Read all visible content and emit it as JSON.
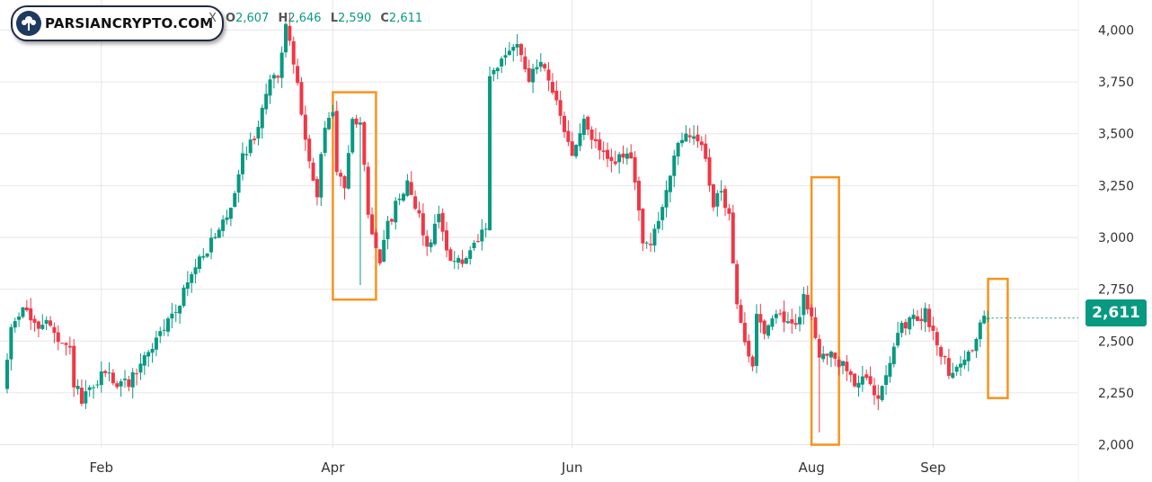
{
  "watermark": {
    "text": "PARSIANCRYPTO.COM"
  },
  "ohlc": {
    "symbol_tail": "X",
    "open_label": "O",
    "open": "2,607",
    "high_label": "H",
    "high": "2,646",
    "low_label": "L",
    "low": "2,590",
    "close_label": "C",
    "close": "2,611"
  },
  "last_price": "2,611",
  "colors": {
    "up": "#089981",
    "down": "#f23645",
    "highlight": "#f7931e",
    "grid": "#e6e6e6"
  },
  "chart_data": {
    "type": "candlestick",
    "y_ticks": [
      "2,000",
      "2,250",
      "2,500",
      "2,750",
      "3,000",
      "3,250",
      "3,500",
      "3,750",
      "4,000"
    ],
    "y_values": [
      2000,
      2250,
      2500,
      2750,
      3000,
      3250,
      3500,
      3750,
      4000
    ],
    "ylim": [
      1985,
      4145
    ],
    "x_ticks": [
      {
        "label": "Feb",
        "day": 0
      },
      {
        "label": "Apr",
        "day": 59
      },
      {
        "label": "Jun",
        "day": 120
      },
      {
        "label": "Aug",
        "day": 181
      },
      {
        "label": "Sep",
        "day": 212
      }
    ],
    "xlim": [
      -24,
      249
    ],
    "grid": true,
    "current_price": 2611,
    "last_candle": {
      "open": 2607,
      "high": 2646,
      "low": 2590,
      "close": 2611
    },
    "anchors": [
      [
        -24,
        2260
      ],
      [
        -22,
        2560
      ],
      [
        -19,
        2680
      ],
      [
        -16,
        2560
      ],
      [
        -13,
        2610
      ],
      [
        -10,
        2480
      ],
      [
        -7,
        2450
      ],
      [
        -6,
        2300
      ],
      [
        -4,
        2210
      ],
      [
        -1,
        2270
      ],
      [
        2,
        2360
      ],
      [
        5,
        2290
      ],
      [
        8,
        2300
      ],
      [
        12,
        2420
      ],
      [
        16,
        2530
      ],
      [
        20,
        2660
      ],
      [
        23,
        2780
      ],
      [
        27,
        2930
      ],
      [
        30,
        2990
      ],
      [
        34,
        3150
      ],
      [
        37,
        3400
      ],
      [
        40,
        3480
      ],
      [
        43,
        3700
      ],
      [
        46,
        3800
      ],
      [
        48,
        4000
      ],
      [
        50,
        3850
      ],
      [
        52,
        3600
      ],
      [
        54,
        3350
      ],
      [
        56,
        3200
      ],
      [
        58,
        3550
      ],
      [
        60,
        3600
      ],
      [
        61,
        3300
      ],
      [
        63,
        3250
      ],
      [
        65,
        3600
      ],
      [
        67,
        3550
      ],
      [
        69,
        3100
      ],
      [
        72,
        2900
      ],
      [
        74,
        3050
      ],
      [
        76,
        3150
      ],
      [
        79,
        3280
      ],
      [
        82,
        3100
      ],
      [
        84,
        2950
      ],
      [
        87,
        3100
      ],
      [
        90,
        2900
      ],
      [
        93,
        2870
      ],
      [
        96,
        2950
      ],
      [
        99,
        3050
      ],
      [
        100,
        3750
      ],
      [
        103,
        3850
      ],
      [
        107,
        3950
      ],
      [
        110,
        3760
      ],
      [
        113,
        3850
      ],
      [
        115,
        3780
      ],
      [
        118,
        3560
      ],
      [
        121,
        3400
      ],
      [
        124,
        3550
      ],
      [
        127,
        3450
      ],
      [
        130,
        3370
      ],
      [
        133,
        3380
      ],
      [
        136,
        3380
      ],
      [
        139,
        3000
      ],
      [
        141,
        2950
      ],
      [
        144,
        3150
      ],
      [
        147,
        3400
      ],
      [
        150,
        3480
      ],
      [
        152,
        3500
      ],
      [
        155,
        3400
      ],
      [
        157,
        3150
      ],
      [
        159,
        3220
      ],
      [
        161,
        3100
      ],
      [
        163,
        2700
      ],
      [
        165,
        2470
      ],
      [
        167,
        2370
      ],
      [
        168,
        2650
      ],
      [
        170,
        2550
      ],
      [
        173,
        2650
      ],
      [
        175,
        2600
      ],
      [
        178,
        2560
      ],
      [
        180,
        2720
      ],
      [
        182,
        2600
      ],
      [
        184,
        2450
      ],
      [
        187,
        2420
      ],
      [
        190,
        2380
      ],
      [
        193,
        2310
      ],
      [
        196,
        2300
      ],
      [
        199,
        2250
      ],
      [
        202,
        2420
      ],
      [
        205,
        2560
      ],
      [
        208,
        2600
      ],
      [
        211,
        2630
      ],
      [
        214,
        2500
      ],
      [
        217,
        2360
      ],
      [
        220,
        2380
      ],
      [
        223,
        2470
      ],
      [
        226,
        2610
      ]
    ],
    "highlight_boxes": [
      {
        "x0": 59,
        "x1": 70,
        "y0": 2700,
        "y1": 3700
      },
      {
        "x0": 181,
        "x1": 188,
        "y0": 2000,
        "y1": 3290
      },
      {
        "x0": 226,
        "x1": 231,
        "y0": 2225,
        "y1": 2800
      }
    ]
  }
}
